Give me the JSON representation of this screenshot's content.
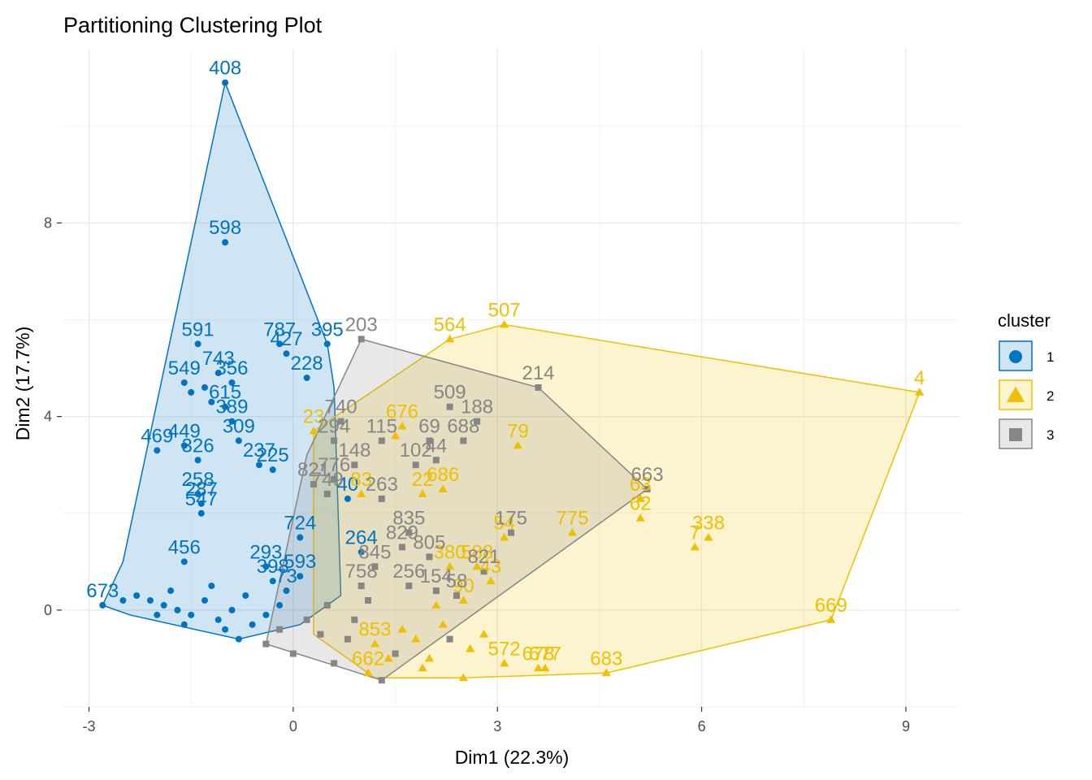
{
  "chart_data": {
    "type": "scatter",
    "title": "Partitioning Clustering Plot",
    "xlabel": "Dim1 (22.3%)",
    "ylabel": "Dim2 (17.7%)",
    "xlim": [
      -3.4,
      9.8
    ],
    "ylim": [
      -2.0,
      11.6
    ],
    "x_ticks": [
      -3,
      0,
      3,
      6,
      9
    ],
    "y_ticks": [
      0,
      4,
      8
    ],
    "grid": true,
    "legend": {
      "title": "cluster",
      "position": "right",
      "entries": [
        {
          "label": "1",
          "color": "#0073C2",
          "shape": "circle"
        },
        {
          "label": "2",
          "color": "#EFC000",
          "shape": "triangle"
        },
        {
          "label": "3",
          "color": "#868686",
          "shape": "square"
        }
      ]
    },
    "series": [
      {
        "name": "1",
        "color": "#0073C2",
        "shape": "circle",
        "hull": [
          [
            -2.8,
            0.1
          ],
          [
            -2.4,
            -0.1
          ],
          [
            -0.8,
            -0.6
          ],
          [
            0.1,
            -0.3
          ],
          [
            0.7,
            0.3
          ],
          [
            0.6,
            4.6
          ],
          [
            0.5,
            5.5
          ],
          [
            -1.0,
            10.9
          ],
          [
            -2.5,
            1.0
          ]
        ],
        "points": [
          {
            "x": -1.0,
            "y": 10.9,
            "label": "408"
          },
          {
            "x": -1.0,
            "y": 7.6,
            "label": "598"
          },
          {
            "x": -1.4,
            "y": 5.5,
            "label": "591"
          },
          {
            "x": -0.2,
            "y": 5.5,
            "label": "787"
          },
          {
            "x": 0.5,
            "y": 5.5,
            "label": "395"
          },
          {
            "x": -0.1,
            "y": 5.3,
            "label": "427"
          },
          {
            "x": 0.2,
            "y": 4.8,
            "label": "228"
          },
          {
            "x": -1.1,
            "y": 4.9,
            "label": "743"
          },
          {
            "x": -0.9,
            "y": 4.7,
            "label": "356"
          },
          {
            "x": -1.6,
            "y": 4.7,
            "label": "549"
          },
          {
            "x": -1.5,
            "y": 4.5,
            "label": ""
          },
          {
            "x": -1.3,
            "y": 4.6,
            "label": ""
          },
          {
            "x": -1.2,
            "y": 4.3,
            "label": ""
          },
          {
            "x": -1.0,
            "y": 4.2,
            "label": "615"
          },
          {
            "x": -0.9,
            "y": 3.9,
            "label": "389"
          },
          {
            "x": -0.8,
            "y": 3.5,
            "label": "309"
          },
          {
            "x": -2.0,
            "y": 3.3,
            "label": "469"
          },
          {
            "x": -1.6,
            "y": 3.4,
            "label": "449"
          },
          {
            "x": -1.4,
            "y": 3.1,
            "label": "326"
          },
          {
            "x": -0.5,
            "y": 3.0,
            "label": "237"
          },
          {
            "x": -0.3,
            "y": 2.9,
            "label": "225"
          },
          {
            "x": -1.4,
            "y": 2.4,
            "label": "258"
          },
          {
            "x": -1.35,
            "y": 2.2,
            "label": "287"
          },
          {
            "x": -1.35,
            "y": 2.0,
            "label": "547"
          },
          {
            "x": 0.8,
            "y": 2.3,
            "label": "40"
          },
          {
            "x": 0.1,
            "y": 1.5,
            "label": "724"
          },
          {
            "x": 1.0,
            "y": 1.2,
            "label": "264"
          },
          {
            "x": -1.6,
            "y": 1.0,
            "label": "456"
          },
          {
            "x": -0.4,
            "y": 0.9,
            "label": "293"
          },
          {
            "x": 0.1,
            "y": 0.7,
            "label": "593"
          },
          {
            "x": -0.3,
            "y": 0.6,
            "label": "398"
          },
          {
            "x": -0.1,
            "y": 0.4,
            "label": "73"
          },
          {
            "x": -2.8,
            "y": 0.1,
            "label": "673"
          },
          {
            "x": -2.3,
            "y": 0.3,
            "label": ""
          },
          {
            "x": -2.1,
            "y": 0.2,
            "label": ""
          },
          {
            "x": -1.9,
            "y": 0.1,
            "label": ""
          },
          {
            "x": -1.7,
            "y": 0.0,
            "label": ""
          },
          {
            "x": -1.5,
            "y": -0.1,
            "label": ""
          },
          {
            "x": -1.3,
            "y": 0.2,
            "label": ""
          },
          {
            "x": -1.1,
            "y": -0.2,
            "label": ""
          },
          {
            "x": -0.9,
            "y": 0.0,
            "label": ""
          },
          {
            "x": -0.8,
            "y": -0.6,
            "label": ""
          },
          {
            "x": -0.6,
            "y": -0.3,
            "label": ""
          },
          {
            "x": -0.4,
            "y": -0.1,
            "label": ""
          },
          {
            "x": -2.5,
            "y": 0.2,
            "label": ""
          },
          {
            "x": -1.8,
            "y": 0.4,
            "label": ""
          },
          {
            "x": -1.2,
            "y": 0.5,
            "label": ""
          },
          {
            "x": -0.7,
            "y": 0.3,
            "label": ""
          },
          {
            "x": -2.0,
            "y": -0.1,
            "label": ""
          },
          {
            "x": -1.6,
            "y": -0.3,
            "label": ""
          },
          {
            "x": -1.0,
            "y": -0.4,
            "label": ""
          },
          {
            "x": -0.2,
            "y": 0.1,
            "label": ""
          }
        ]
      },
      {
        "name": "2",
        "color": "#EFC000",
        "shape": "triangle",
        "hull": [
          [
            0.3,
            -0.5
          ],
          [
            1.2,
            -1.4
          ],
          [
            2.5,
            -1.4
          ],
          [
            4.6,
            -1.3
          ],
          [
            7.9,
            -0.2
          ],
          [
            9.2,
            4.5
          ],
          [
            3.1,
            5.9
          ],
          [
            2.3,
            5.6
          ],
          [
            0.3,
            3.7
          ]
        ],
        "points": [
          {
            "x": 3.1,
            "y": 5.9,
            "label": "507"
          },
          {
            "x": 2.3,
            "y": 5.6,
            "label": "564"
          },
          {
            "x": 9.2,
            "y": 4.5,
            "label": "4"
          },
          {
            "x": 0.3,
            "y": 3.7,
            "label": "23"
          },
          {
            "x": 1.6,
            "y": 3.8,
            "label": "676"
          },
          {
            "x": 1.5,
            "y": 3.6,
            "label": ""
          },
          {
            "x": 3.3,
            "y": 3.4,
            "label": "79"
          },
          {
            "x": 5.1,
            "y": 2.3,
            "label": "63"
          },
          {
            "x": 5.1,
            "y": 1.9,
            "label": "62"
          },
          {
            "x": 6.1,
            "y": 1.5,
            "label": "338"
          },
          {
            "x": 5.9,
            "y": 1.3,
            "label": "7"
          },
          {
            "x": 4.1,
            "y": 1.6,
            "label": "775"
          },
          {
            "x": 2.2,
            "y": 2.5,
            "label": "686"
          },
          {
            "x": 1.9,
            "y": 2.4,
            "label": "22"
          },
          {
            "x": 1.0,
            "y": 2.4,
            "label": "83"
          },
          {
            "x": 3.1,
            "y": 1.5,
            "label": "54"
          },
          {
            "x": 7.9,
            "y": -0.2,
            "label": "669"
          },
          {
            "x": 4.6,
            "y": -1.3,
            "label": "683"
          },
          {
            "x": 3.6,
            "y": -1.2,
            "label": "678"
          },
          {
            "x": 3.7,
            "y": -1.2,
            "label": "677"
          },
          {
            "x": 3.1,
            "y": -1.1,
            "label": "572"
          },
          {
            "x": 2.9,
            "y": 0.6,
            "label": "43"
          },
          {
            "x": 2.7,
            "y": 0.9,
            "label": "588"
          },
          {
            "x": 2.3,
            "y": 0.9,
            "label": "380"
          },
          {
            "x": 2.5,
            "y": 0.2,
            "label": "90"
          },
          {
            "x": 1.2,
            "y": -0.7,
            "label": "853"
          },
          {
            "x": 1.1,
            "y": -1.3,
            "label": "662"
          },
          {
            "x": 2.5,
            "y": -1.4,
            "label": ""
          },
          {
            "x": 2.0,
            "y": -1.0,
            "label": ""
          },
          {
            "x": 1.8,
            "y": -0.6,
            "label": ""
          },
          {
            "x": 2.2,
            "y": -0.3,
            "label": ""
          },
          {
            "x": 2.6,
            "y": -0.8,
            "label": ""
          },
          {
            "x": 2.1,
            "y": 0.1,
            "label": ""
          },
          {
            "x": 1.6,
            "y": -0.4,
            "label": ""
          },
          {
            "x": 1.4,
            "y": -1.0,
            "label": ""
          },
          {
            "x": 2.8,
            "y": -0.5,
            "label": ""
          },
          {
            "x": 1.9,
            "y": -1.2,
            "label": ""
          }
        ]
      },
      {
        "name": "3",
        "color": "#868686",
        "shape": "square",
        "hull": [
          [
            -0.4,
            -0.7
          ],
          [
            1.3,
            -1.45
          ],
          [
            5.2,
            2.5
          ],
          [
            3.6,
            4.6
          ],
          [
            1.0,
            5.6
          ],
          [
            0.2,
            3.2
          ]
        ],
        "points": [
          {
            "x": 1.0,
            "y": 5.6,
            "label": "203"
          },
          {
            "x": 3.6,
            "y": 4.6,
            "label": "214"
          },
          {
            "x": 2.3,
            "y": 4.2,
            "label": "509"
          },
          {
            "x": 2.7,
            "y": 3.9,
            "label": "188"
          },
          {
            "x": 2.5,
            "y": 3.5,
            "label": "688"
          },
          {
            "x": 2.0,
            "y": 3.5,
            "label": "69"
          },
          {
            "x": 0.7,
            "y": 3.9,
            "label": "740"
          },
          {
            "x": 0.6,
            "y": 3.5,
            "label": "294"
          },
          {
            "x": 1.3,
            "y": 3.5,
            "label": "115"
          },
          {
            "x": 5.2,
            "y": 2.5,
            "label": "663"
          },
          {
            "x": 0.9,
            "y": 3.0,
            "label": "148"
          },
          {
            "x": 1.8,
            "y": 3.0,
            "label": "102"
          },
          {
            "x": 2.1,
            "y": 3.1,
            "label": "44"
          },
          {
            "x": 0.3,
            "y": 2.6,
            "label": "821"
          },
          {
            "x": 0.6,
            "y": 2.7,
            "label": "776"
          },
          {
            "x": 0.5,
            "y": 2.4,
            "label": "749"
          },
          {
            "x": 1.3,
            "y": 2.3,
            "label": "263"
          },
          {
            "x": 1.7,
            "y": 1.6,
            "label": "835"
          },
          {
            "x": 1.6,
            "y": 1.3,
            "label": "829"
          },
          {
            "x": 3.2,
            "y": 1.6,
            "label": "175"
          },
          {
            "x": 2.0,
            "y": 1.1,
            "label": "805"
          },
          {
            "x": 2.8,
            "y": 0.8,
            "label": "821"
          },
          {
            "x": 1.2,
            "y": 0.9,
            "label": "845"
          },
          {
            "x": 1.0,
            "y": 0.5,
            "label": "758"
          },
          {
            "x": 1.7,
            "y": 0.5,
            "label": "256"
          },
          {
            "x": 2.1,
            "y": 0.4,
            "label": "154"
          },
          {
            "x": 2.4,
            "y": 0.3,
            "label": "58"
          },
          {
            "x": 0.9,
            "y": -0.2,
            "label": ""
          },
          {
            "x": 0.4,
            "y": -0.5,
            "label": ""
          },
          {
            "x": 1.3,
            "y": -1.45,
            "label": ""
          },
          {
            "x": -0.4,
            "y": -0.7,
            "label": ""
          },
          {
            "x": 0.0,
            "y": -0.9,
            "label": ""
          },
          {
            "x": 0.6,
            "y": -1.1,
            "label": ""
          },
          {
            "x": 0.2,
            "y": -0.2,
            "label": ""
          },
          {
            "x": 1.5,
            "y": -0.9,
            "label": ""
          },
          {
            "x": 0.8,
            "y": -0.6,
            "label": ""
          },
          {
            "x": 1.1,
            "y": 0.2,
            "label": ""
          },
          {
            "x": 0.5,
            "y": 0.1,
            "label": ""
          },
          {
            "x": -0.2,
            "y": -0.4,
            "label": ""
          },
          {
            "x": 2.3,
            "y": -0.6,
            "label": ""
          }
        ]
      }
    ]
  }
}
